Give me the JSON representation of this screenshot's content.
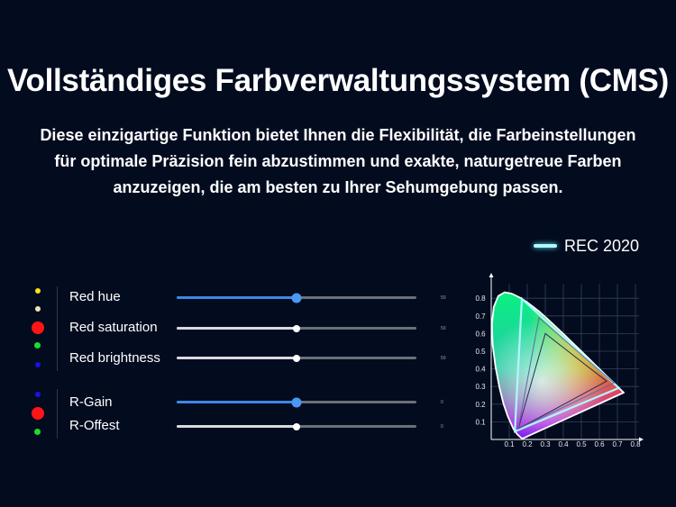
{
  "title": "Vollständiges Farbverwaltungssystem (CMS)",
  "description": "Diese einzigartige Funktion bietet Ihnen die Flexibilität, die Farbeinstellungen für optimale Präzision fein abzustimmen und exakte, naturgetreue Farben anzuzeigen, die am besten zu Ihrer Sehumgebung passen.",
  "legend": {
    "label": "REC 2020",
    "color": "#aef8ff"
  },
  "color_dots": [
    {
      "name": "yellow",
      "color": "#f7e01b"
    },
    {
      "name": "cream",
      "color": "#f3e2b8"
    },
    {
      "name": "red",
      "color": "#ff1515"
    },
    {
      "name": "green",
      "color": "#19dd2c"
    },
    {
      "name": "blue",
      "color": "#1414e6"
    },
    {
      "name": "blue",
      "color": "#1414e6"
    },
    {
      "name": "red",
      "color": "#ff1515"
    },
    {
      "name": "green",
      "color": "#19dd2c"
    }
  ],
  "sliders": [
    {
      "label": "Red hue",
      "value": "50",
      "fraction": 0.5,
      "style": "blue"
    },
    {
      "label": "Red saturation",
      "value": "50",
      "fraction": 0.5,
      "style": "white"
    },
    {
      "label": "Red brightness",
      "value": "50",
      "fraction": 0.5,
      "style": "white"
    },
    {
      "label": "R-Gain",
      "value": "0",
      "fraction": 0.5,
      "style": "blue"
    },
    {
      "label": "R-Offest",
      "value": "0",
      "fraction": 0.5,
      "style": "white"
    }
  ],
  "chart_data": {
    "type": "scatter",
    "title": "",
    "xlabel": "",
    "ylabel": "",
    "xlim": [
      0,
      0.8
    ],
    "ylim": [
      0,
      0.9
    ],
    "x_ticks": [
      "0.1",
      "0.2",
      "0.3",
      "0.4",
      "0.5",
      "0.6",
      "0.7",
      "0.8"
    ],
    "y_ticks": [
      "0.1",
      "0.2",
      "0.3",
      "0.4",
      "0.5",
      "0.6",
      "0.7",
      "0.8"
    ],
    "grid": true,
    "series": [
      {
        "name": "REC 2020",
        "points": [
          [
            0.708,
            0.292
          ],
          [
            0.17,
            0.797
          ],
          [
            0.131,
            0.046
          ]
        ]
      },
      {
        "points": [
          [
            0.64,
            0.33
          ],
          [
            0.3,
            0.6
          ],
          [
            0.15,
            0.06
          ]
        ]
      },
      {
        "points": [
          [
            0.68,
            0.32
          ],
          [
            0.265,
            0.69
          ],
          [
            0.15,
            0.06
          ]
        ]
      }
    ],
    "locus": [
      [
        0.1741,
        0.005
      ],
      [
        0.1738,
        0.0049
      ],
      [
        0.1736,
        0.0049
      ],
      [
        0.1733,
        0.0048
      ],
      [
        0.1726,
        0.0048
      ],
      [
        0.1714,
        0.0051
      ],
      [
        0.1689,
        0.0069
      ],
      [
        0.1644,
        0.0109
      ],
      [
        0.1566,
        0.0177
      ],
      [
        0.144,
        0.0297
      ],
      [
        0.1241,
        0.0578
      ],
      [
        0.0913,
        0.1327
      ],
      [
        0.0687,
        0.2007
      ],
      [
        0.0454,
        0.295
      ],
      [
        0.0235,
        0.4127
      ],
      [
        0.0082,
        0.5384
      ],
      [
        0.0039,
        0.6548
      ],
      [
        0.0139,
        0.7502
      ],
      [
        0.0389,
        0.812
      ],
      [
        0.0743,
        0.8338
      ],
      [
        0.1142,
        0.8262
      ],
      [
        0.1547,
        0.8059
      ],
      [
        0.1929,
        0.7816
      ],
      [
        0.2296,
        0.7543
      ],
      [
        0.2658,
        0.7243
      ],
      [
        0.3016,
        0.6923
      ],
      [
        0.3373,
        0.6589
      ],
      [
        0.3731,
        0.6245
      ],
      [
        0.4087,
        0.5896
      ],
      [
        0.4441,
        0.5547
      ],
      [
        0.4788,
        0.5202
      ],
      [
        0.5125,
        0.4866
      ],
      [
        0.5448,
        0.4544
      ],
      [
        0.5752,
        0.4242
      ],
      [
        0.6029,
        0.3965
      ],
      [
        0.627,
        0.3725
      ],
      [
        0.6482,
        0.3514
      ],
      [
        0.6658,
        0.334
      ],
      [
        0.6801,
        0.3197
      ],
      [
        0.6915,
        0.3083
      ],
      [
        0.7006,
        0.2993
      ],
      [
        0.7079,
        0.292
      ],
      [
        0.714,
        0.2859
      ],
      [
        0.719,
        0.2809
      ],
      [
        0.723,
        0.277
      ],
      [
        0.726,
        0.274
      ],
      [
        0.7283,
        0.2717
      ],
      [
        0.73,
        0.27
      ],
      [
        0.7311,
        0.2689
      ],
      [
        0.732,
        0.268
      ],
      [
        0.7327,
        0.2673
      ],
      [
        0.7334,
        0.2666
      ],
      [
        0.734,
        0.266
      ],
      [
        0.7344,
        0.2656
      ],
      [
        0.7346,
        0.2654
      ],
      [
        0.7347,
        0.2653
      ]
    ]
  }
}
